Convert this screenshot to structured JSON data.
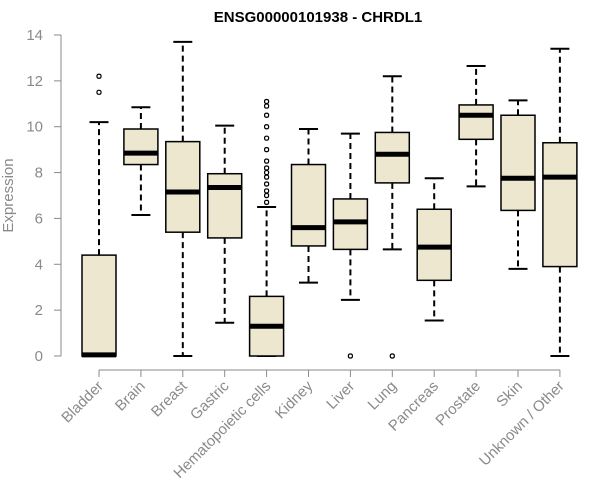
{
  "chart_data": {
    "type": "boxplot",
    "title": "ENSG00000101938 - CHRDL1",
    "xlabel": "",
    "ylabel": "Expression",
    "ylim": [
      0,
      14
    ],
    "yticks": [
      0,
      2,
      4,
      6,
      8,
      10,
      12,
      14
    ],
    "grid": false,
    "box_fill": "#ede7cf",
    "box_stroke": "#000000",
    "axis_color": "#8a8a8a",
    "categories": [
      "Bladder",
      "Brain",
      "Breast",
      "Gastric",
      "Hematopoietic cells",
      "Kidney",
      "Liver",
      "Lung",
      "Pancreas",
      "Prostate",
      "Skin",
      "Unknown / Other"
    ],
    "boxes": [
      {
        "label": "Bladder",
        "whisker_low": 0,
        "q1": 0,
        "median": 0.05,
        "q3": 4.4,
        "whisker_high": 10.2,
        "outliers": [
          11.5,
          12.2
        ]
      },
      {
        "label": "Brain",
        "whisker_low": 6.15,
        "q1": 8.35,
        "median": 8.85,
        "q3": 9.9,
        "whisker_high": 10.85,
        "outliers": []
      },
      {
        "label": "Breast",
        "whisker_low": 0,
        "q1": 5.4,
        "median": 7.15,
        "q3": 9.35,
        "whisker_high": 13.7,
        "outliers": []
      },
      {
        "label": "Gastric",
        "whisker_low": 1.45,
        "q1": 5.15,
        "median": 7.35,
        "q3": 7.95,
        "whisker_high": 10.05,
        "outliers": []
      },
      {
        "label": "Hematopoietic cells",
        "whisker_low": 0,
        "q1": 0,
        "median": 1.3,
        "q3": 2.6,
        "whisker_high": 6.5,
        "outliers": [
          6.7,
          7.0,
          7.2,
          7.5,
          7.8,
          8.0,
          8.2,
          8.5,
          9.0,
          9.5,
          10.0,
          10.5,
          10.9,
          11.1
        ]
      },
      {
        "label": "Kidney",
        "whisker_low": 3.2,
        "q1": 4.8,
        "median": 5.6,
        "q3": 8.35,
        "whisker_high": 9.9,
        "outliers": []
      },
      {
        "label": "Liver",
        "whisker_low": 2.45,
        "q1": 4.65,
        "median": 5.85,
        "q3": 6.85,
        "whisker_high": 9.7,
        "outliers": [
          0
        ]
      },
      {
        "label": "Lung",
        "whisker_low": 4.65,
        "q1": 7.55,
        "median": 8.8,
        "q3": 9.75,
        "whisker_high": 12.2,
        "outliers": [
          0
        ]
      },
      {
        "label": "Pancreas",
        "whisker_low": 1.55,
        "q1": 3.3,
        "median": 4.75,
        "q3": 6.4,
        "whisker_high": 7.75,
        "outliers": []
      },
      {
        "label": "Prostate",
        "whisker_low": 7.4,
        "q1": 9.45,
        "median": 10.5,
        "q3": 10.95,
        "whisker_high": 12.65,
        "outliers": []
      },
      {
        "label": "Skin",
        "whisker_low": 3.8,
        "q1": 6.35,
        "median": 7.75,
        "q3": 10.5,
        "whisker_high": 11.15,
        "outliers": []
      },
      {
        "label": "Unknown / Other",
        "whisker_low": 0,
        "q1": 3.9,
        "median": 7.8,
        "q3": 9.3,
        "whisker_high": 13.4,
        "outliers": []
      }
    ]
  }
}
